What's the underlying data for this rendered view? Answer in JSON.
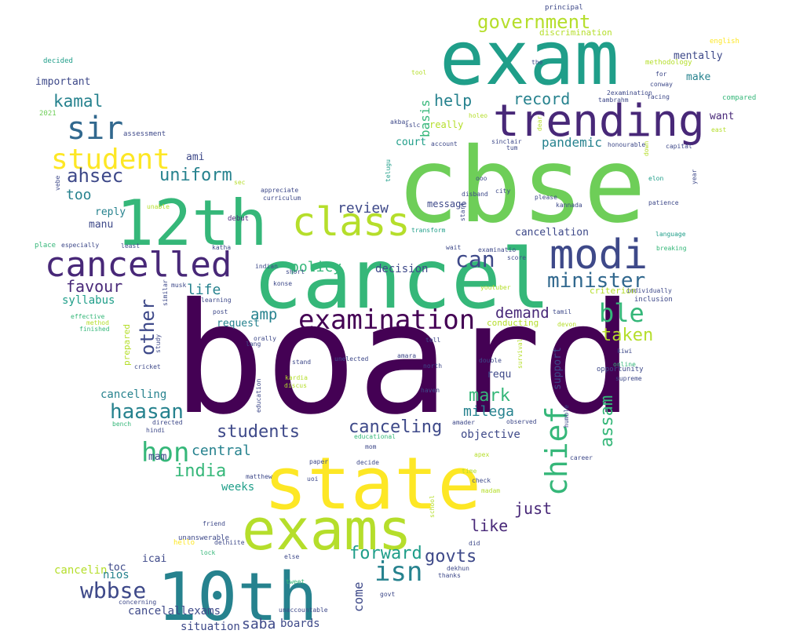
{
  "word_cloud": {
    "colors": {
      "purple": "#440154",
      "indigo": "#482878",
      "slate": "#3e4989",
      "steel": "#31688e",
      "teal": "#26828e",
      "sea": "#1f9e89",
      "green": "#35b779",
      "leaf": "#6ece58",
      "lime": "#b5de2b",
      "yellow": "#fde725"
    },
    "words": [
      {
        "text": "board",
        "color": "purple"
      },
      {
        "text": "cbse",
        "color": "leaf"
      },
      {
        "text": "cancel",
        "color": "green"
      },
      {
        "text": "exam",
        "color": "sea"
      },
      {
        "text": "state",
        "color": "yellow"
      },
      {
        "text": "exams",
        "color": "lime"
      },
      {
        "text": "10th",
        "color": "teal"
      },
      {
        "text": "12th",
        "color": "green"
      },
      {
        "text": "trending",
        "color": "indigo"
      },
      {
        "text": "cancelled",
        "color": "indigo"
      },
      {
        "text": "modi",
        "color": "slate"
      },
      {
        "text": "class",
        "color": "lime"
      },
      {
        "text": "sir",
        "color": "steel"
      },
      {
        "text": "student",
        "color": "yellow"
      },
      {
        "text": "examination",
        "color": "purple"
      },
      {
        "text": "minister",
        "color": "steel"
      },
      {
        "text": "hon",
        "color": "green"
      },
      {
        "text": "chief",
        "color": "green"
      },
      {
        "text": "isn",
        "color": "teal"
      },
      {
        "text": "wbbse",
        "color": "slate"
      },
      {
        "text": "government",
        "color": "lime"
      },
      {
        "text": "can",
        "color": "slate"
      },
      {
        "text": "ble",
        "color": "green"
      },
      {
        "text": "other",
        "color": "slate"
      },
      {
        "text": "students",
        "color": "slate"
      },
      {
        "text": "canceling",
        "color": "slate"
      },
      {
        "text": "haasan",
        "color": "teal"
      },
      {
        "text": "assam",
        "color": "green"
      },
      {
        "text": "india",
        "color": "green"
      },
      {
        "text": "ahsec",
        "color": "slate"
      },
      {
        "text": "uniform",
        "color": "teal"
      },
      {
        "text": "kamal",
        "color": "teal"
      },
      {
        "text": "help",
        "color": "teal"
      },
      {
        "text": "record",
        "color": "teal"
      },
      {
        "text": "policy",
        "color": "green"
      },
      {
        "text": "review",
        "color": "slate"
      },
      {
        "text": "taken",
        "color": "lime"
      },
      {
        "text": "forward",
        "color": "sea"
      },
      {
        "text": "govts",
        "color": "slate"
      },
      {
        "text": "mark",
        "color": "green"
      },
      {
        "text": "milega",
        "color": "teal"
      },
      {
        "text": "just",
        "color": "indigo"
      },
      {
        "text": "like",
        "color": "indigo"
      },
      {
        "text": "favour",
        "color": "indigo"
      },
      {
        "text": "amp",
        "color": "teal"
      },
      {
        "text": "demand",
        "color": "indigo"
      },
      {
        "text": "life",
        "color": "teal"
      },
      {
        "text": "central",
        "color": "teal"
      },
      {
        "text": "too",
        "color": "teal"
      },
      {
        "text": "pandemic",
        "color": "teal"
      },
      {
        "text": "basis",
        "color": "green"
      },
      {
        "text": "come",
        "color": "slate"
      },
      {
        "text": "saba",
        "color": "slate"
      },
      {
        "text": "mentally",
        "color": "slate"
      },
      {
        "text": "make",
        "color": "teal"
      },
      {
        "text": "want",
        "color": "indigo"
      },
      {
        "text": "syllabus",
        "color": "sea"
      },
      {
        "text": "decision",
        "color": "slate"
      },
      {
        "text": "cancellation",
        "color": "slate"
      },
      {
        "text": "cancelling",
        "color": "teal"
      },
      {
        "text": "support",
        "color": "slate"
      },
      {
        "text": "objective",
        "color": "slate"
      },
      {
        "text": "weeks",
        "color": "sea"
      },
      {
        "text": "cancelin",
        "color": "lime"
      },
      {
        "text": "nios",
        "color": "teal"
      },
      {
        "text": "cancelallexams",
        "color": "slate"
      },
      {
        "text": "situation",
        "color": "slate"
      },
      {
        "text": "boards",
        "color": "slate"
      },
      {
        "text": "court",
        "color": "sea"
      },
      {
        "text": "really",
        "color": "lime"
      },
      {
        "text": "reply",
        "color": "teal"
      },
      {
        "text": "manu",
        "color": "slate"
      },
      {
        "text": "important",
        "color": "slate"
      },
      {
        "text": "ami",
        "color": "slate"
      },
      {
        "text": "request",
        "color": "teal"
      },
      {
        "text": "icai",
        "color": "slate"
      },
      {
        "text": "toc",
        "color": "slate"
      },
      {
        "text": "mam",
        "color": "slate"
      },
      {
        "text": "requ",
        "color": "slate"
      },
      {
        "text": "message",
        "color": "slate"
      },
      {
        "text": "criterion",
        "color": "lime"
      },
      {
        "text": "conducting",
        "color": "lime"
      },
      {
        "text": "prepared",
        "color": "lime"
      },
      {
        "text": "discrimination",
        "color": "lime"
      },
      {
        "text": "english",
        "color": "yellow"
      },
      {
        "text": "methodology",
        "color": "lime"
      },
      {
        "text": "decided",
        "color": "sea"
      },
      {
        "text": "2021",
        "color": "leaf"
      },
      {
        "text": "assessment",
        "color": "slate"
      },
      {
        "text": "principal",
        "color": "slate"
      },
      {
        "text": "tool",
        "color": "lime"
      },
      {
        "text": "the",
        "color": "slate"
      },
      {
        "text": "for",
        "color": "slate"
      },
      {
        "text": "conway",
        "color": "slate"
      },
      {
        "text": "2examination",
        "color": "slate"
      },
      {
        "text": "facing",
        "color": "slate"
      },
      {
        "text": "tambrahm",
        "color": "slate"
      },
      {
        "text": "compared",
        "color": "green"
      },
      {
        "text": "holeo",
        "color": "lime"
      },
      {
        "text": "dear",
        "color": "lime"
      },
      {
        "text": "sslc",
        "color": "slate"
      },
      {
        "text": "akbar",
        "color": "slate"
      },
      {
        "text": "account",
        "color": "slate"
      },
      {
        "text": "sinclair",
        "color": "slate"
      },
      {
        "text": "tum",
        "color": "slate"
      },
      {
        "text": "honourable",
        "color": "slate"
      },
      {
        "text": "down",
        "color": "lime"
      },
      {
        "text": "capital",
        "color": "slate"
      },
      {
        "text": "east",
        "color": "lime"
      },
      {
        "text": "year",
        "color": "slate"
      },
      {
        "text": "elon",
        "color": "sea"
      },
      {
        "text": "telugu",
        "color": "sea"
      },
      {
        "text": "ooo",
        "color": "slate"
      },
      {
        "text": "disband",
        "color": "slate"
      },
      {
        "text": "city",
        "color": "slate"
      },
      {
        "text": "please",
        "color": "slate"
      },
      {
        "text": "kannada",
        "color": "slate"
      },
      {
        "text": "patience",
        "color": "slate"
      },
      {
        "text": "start",
        "color": "slate"
      },
      {
        "text": "transform",
        "color": "sea"
      },
      {
        "text": "sec",
        "color": "lime"
      },
      {
        "text": "appreciate",
        "color": "slate"
      },
      {
        "text": "curriculum",
        "color": "slate"
      },
      {
        "text": "debut",
        "color": "indigo"
      },
      {
        "text": "vebe",
        "color": "slate"
      },
      {
        "text": "unable",
        "color": "lime"
      },
      {
        "text": "place",
        "color": "green"
      },
      {
        "text": "especially",
        "color": "slate"
      },
      {
        "text": "least",
        "color": "slate"
      },
      {
        "text": "katha",
        "color": "slate"
      },
      {
        "text": "indian",
        "color": "slate"
      },
      {
        "text": "wait",
        "color": "slate"
      },
      {
        "text": "examinatio",
        "color": "slate"
      },
      {
        "text": "score",
        "color": "slate"
      },
      {
        "text": "language",
        "color": "sea"
      },
      {
        "text": "breaking",
        "color": "green"
      },
      {
        "text": "short",
        "color": "slate"
      },
      {
        "text": "konse",
        "color": "slate"
      },
      {
        "text": "musk",
        "color": "slate"
      },
      {
        "text": "similar",
        "color": "slate"
      },
      {
        "text": "learning",
        "color": "slate"
      },
      {
        "text": "youtuber",
        "color": "lime"
      },
      {
        "text": "individually",
        "color": "slate"
      },
      {
        "text": "inclusion",
        "color": "slate"
      },
      {
        "text": "effective",
        "color": "green"
      },
      {
        "text": "method",
        "color": "lime"
      },
      {
        "text": "finished",
        "color": "green"
      },
      {
        "text": "post",
        "color": "slate"
      },
      {
        "text": "lang",
        "color": "slate"
      },
      {
        "text": "orally",
        "color": "slate"
      },
      {
        "text": "tamil",
        "color": "slate"
      },
      {
        "text": "devon",
        "color": "lime"
      },
      {
        "text": "kiwi",
        "color": "slate"
      },
      {
        "text": "study",
        "color": "slate"
      },
      {
        "text": "cricket",
        "color": "slate"
      },
      {
        "text": "tell",
        "color": "slate"
      },
      {
        "text": "amara",
        "color": "slate"
      },
      {
        "text": "north",
        "color": "slate"
      },
      {
        "text": "stand",
        "color": "slate"
      },
      {
        "text": "unelected",
        "color": "slate"
      },
      {
        "text": "double",
        "color": "slate"
      },
      {
        "text": "online",
        "color": "green"
      },
      {
        "text": "opportunity",
        "color": "slate"
      },
      {
        "text": "supreme",
        "color": "slate"
      },
      {
        "text": "kardia",
        "color": "lime"
      },
      {
        "text": "discus",
        "color": "lime"
      },
      {
        "text": "haven",
        "color": "slate"
      },
      {
        "text": "survival",
        "color": "lime"
      },
      {
        "text": "education",
        "color": "slate"
      },
      {
        "text": "directed",
        "color": "slate"
      },
      {
        "text": "bench",
        "color": "green"
      },
      {
        "text": "hindi",
        "color": "slate"
      },
      {
        "text": "amader",
        "color": "slate"
      },
      {
        "text": "observed",
        "color": "slate"
      },
      {
        "text": "humble",
        "color": "slate"
      },
      {
        "text": "educational",
        "color": "green"
      },
      {
        "text": "mom",
        "color": "slate"
      },
      {
        "text": "decide",
        "color": "slate"
      },
      {
        "text": "apex",
        "color": "lime"
      },
      {
        "text": "career",
        "color": "slate"
      },
      {
        "text": "paper",
        "color": "slate"
      },
      {
        "text": "time",
        "color": "lime"
      },
      {
        "text": "matthew",
        "color": "slate"
      },
      {
        "text": "uoi",
        "color": "slate"
      },
      {
        "text": "check",
        "color": "slate"
      },
      {
        "text": "madam",
        "color": "lime"
      },
      {
        "text": "school",
        "color": "lime"
      },
      {
        "text": "friend",
        "color": "slate"
      },
      {
        "text": "unanswerable",
        "color": "slate"
      },
      {
        "text": "hello",
        "color": "yellow"
      },
      {
        "text": "delhiite",
        "color": "slate"
      },
      {
        "text": "lock",
        "color": "green"
      },
      {
        "text": "else",
        "color": "slate"
      },
      {
        "text": "dekhun",
        "color": "slate"
      },
      {
        "text": "thanks",
        "color": "slate"
      },
      {
        "text": "did",
        "color": "slate"
      },
      {
        "text": "tweet",
        "color": "green"
      },
      {
        "text": "govt",
        "color": "slate"
      },
      {
        "text": "concerning",
        "color": "slate"
      },
      {
        "text": "unaccountable",
        "color": "slate"
      }
    ]
  }
}
